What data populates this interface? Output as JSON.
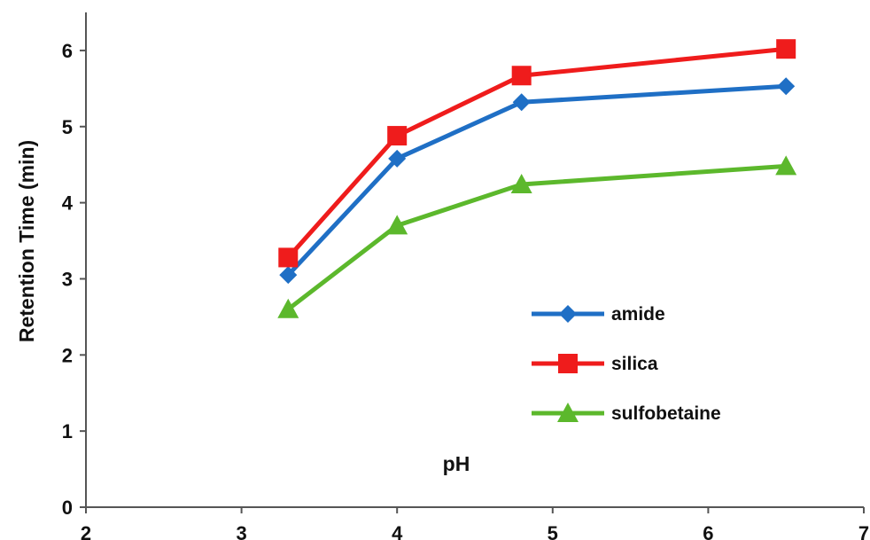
{
  "chart_data": {
    "type": "line",
    "title": "",
    "xlabel": "pH",
    "ylabel": "Retention Time (min)",
    "xlim": [
      2,
      7
    ],
    "ylim": [
      0,
      6.5
    ],
    "x_ticks": [
      "2",
      "3",
      "4",
      "5",
      "6",
      "7"
    ],
    "y_ticks": [
      "0",
      "1",
      "2",
      "3",
      "4",
      "5",
      "6"
    ],
    "grid": false,
    "legend_position": "center-right",
    "x": [
      3.3,
      4.0,
      4.8,
      6.5
    ],
    "series": [
      {
        "name": "amide",
        "color": "#1f6fc5",
        "marker": "diamond",
        "values": [
          3.05,
          4.58,
          5.32,
          5.53
        ]
      },
      {
        "name": "silica",
        "color": "#ef1c1c",
        "marker": "square",
        "values": [
          3.28,
          4.88,
          5.67,
          6.02
        ]
      },
      {
        "name": "sulfobetaine",
        "color": "#5cb82c",
        "marker": "triangle",
        "values": [
          2.6,
          3.7,
          4.24,
          4.48
        ]
      }
    ]
  }
}
